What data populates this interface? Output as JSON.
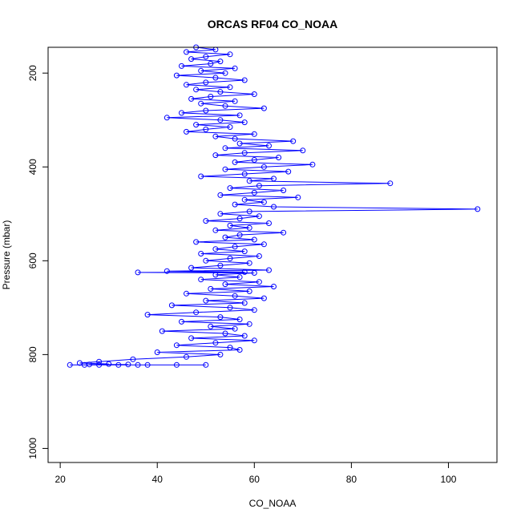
{
  "chart_data": {
    "type": "scatter",
    "title": "ORCAS RF04 CO_NOAA",
    "xlabel": "CO_NOAA",
    "ylabel": "Pressure (mbar)",
    "xlim": [
      17.5,
      110
    ],
    "ylim": [
      1030,
      145
    ],
    "y_reversed": true,
    "x_ticks": [
      "20",
      "40",
      "60",
      "80",
      "100"
    ],
    "y_ticks": [
      "200",
      "400",
      "600",
      "800",
      "1000"
    ],
    "grid": false,
    "legend": "none",
    "marker": "open-circle",
    "connected": true,
    "color": "#0000ff",
    "series": [
      {
        "points": [
          [
            48,
            145
          ],
          [
            52,
            150
          ],
          [
            46,
            155
          ],
          [
            55,
            160
          ],
          [
            50,
            165
          ],
          [
            47,
            170
          ],
          [
            53,
            175
          ],
          [
            51,
            180
          ],
          [
            45,
            185
          ],
          [
            56,
            190
          ],
          [
            49,
            195
          ],
          [
            54,
            200
          ],
          [
            44,
            205
          ],
          [
            52,
            210
          ],
          [
            58,
            215
          ],
          [
            50,
            220
          ],
          [
            46,
            225
          ],
          [
            55,
            230
          ],
          [
            48,
            235
          ],
          [
            53,
            240
          ],
          [
            60,
            245
          ],
          [
            51,
            250
          ],
          [
            47,
            255
          ],
          [
            56,
            260
          ],
          [
            49,
            265
          ],
          [
            54,
            270
          ],
          [
            62,
            275
          ],
          [
            50,
            280
          ],
          [
            45,
            285
          ],
          [
            57,
            290
          ],
          [
            42,
            295
          ],
          [
            53,
            300
          ],
          [
            58,
            305
          ],
          [
            48,
            310
          ],
          [
            55,
            315
          ],
          [
            50,
            320
          ],
          [
            46,
            325
          ],
          [
            60,
            330
          ],
          [
            52,
            335
          ],
          [
            56,
            340
          ],
          [
            68,
            345
          ],
          [
            57,
            350
          ],
          [
            63,
            355
          ],
          [
            54,
            360
          ],
          [
            70,
            365
          ],
          [
            58,
            370
          ],
          [
            52,
            375
          ],
          [
            65,
            380
          ],
          [
            60,
            385
          ],
          [
            56,
            390
          ],
          [
            72,
            395
          ],
          [
            62,
            400
          ],
          [
            54,
            405
          ],
          [
            67,
            410
          ],
          [
            58,
            415
          ],
          [
            49,
            420
          ],
          [
            64,
            425
          ],
          [
            59,
            430
          ],
          [
            88,
            435
          ],
          [
            61,
            440
          ],
          [
            55,
            445
          ],
          [
            66,
            450
          ],
          [
            60,
            455
          ],
          [
            53,
            460
          ],
          [
            69,
            465
          ],
          [
            58,
            470
          ],
          [
            62,
            475
          ],
          [
            56,
            480
          ],
          [
            64,
            485
          ],
          [
            106,
            490
          ],
          [
            59,
            495
          ],
          [
            53,
            500
          ],
          [
            61,
            505
          ],
          [
            57,
            510
          ],
          [
            50,
            515
          ],
          [
            63,
            520
          ],
          [
            55,
            525
          ],
          [
            59,
            530
          ],
          [
            52,
            535
          ],
          [
            66,
            540
          ],
          [
            57,
            545
          ],
          [
            54,
            550
          ],
          [
            60,
            555
          ],
          [
            48,
            560
          ],
          [
            62,
            565
          ],
          [
            56,
            570
          ],
          [
            52,
            575
          ],
          [
            58,
            580
          ],
          [
            49,
            585
          ],
          [
            61,
            590
          ],
          [
            55,
            595
          ],
          [
            50,
            600
          ],
          [
            59,
            605
          ],
          [
            53,
            610
          ],
          [
            47,
            615
          ],
          [
            63,
            620
          ],
          [
            42,
            622
          ],
          [
            58,
            624
          ],
          [
            36,
            625
          ],
          [
            60,
            626
          ],
          [
            52,
            630
          ],
          [
            57,
            635
          ],
          [
            49,
            640
          ],
          [
            61,
            645
          ],
          [
            54,
            650
          ],
          [
            64,
            655
          ],
          [
            51,
            660
          ],
          [
            59,
            665
          ],
          [
            46,
            670
          ],
          [
            56,
            675
          ],
          [
            62,
            680
          ],
          [
            50,
            685
          ],
          [
            58,
            690
          ],
          [
            43,
            695
          ],
          [
            55,
            700
          ],
          [
            60,
            705
          ],
          [
            48,
            710
          ],
          [
            38,
            715
          ],
          [
            53,
            720
          ],
          [
            57,
            725
          ],
          [
            45,
            730
          ],
          [
            59,
            735
          ],
          [
            51,
            740
          ],
          [
            56,
            745
          ],
          [
            41,
            750
          ],
          [
            54,
            755
          ],
          [
            58,
            760
          ],
          [
            47,
            765
          ],
          [
            60,
            770
          ],
          [
            52,
            775
          ],
          [
            44,
            780
          ],
          [
            55,
            785
          ],
          [
            57,
            790
          ],
          [
            40,
            795
          ],
          [
            53,
            800
          ],
          [
            46,
            805
          ],
          [
            35,
            810
          ],
          [
            28,
            815
          ],
          [
            24,
            818
          ],
          [
            30,
            820
          ],
          [
            26,
            821
          ],
          [
            34,
            821
          ],
          [
            22,
            822
          ],
          [
            38,
            822
          ],
          [
            28,
            822
          ],
          [
            32,
            822
          ],
          [
            44,
            822
          ],
          [
            25,
            822
          ],
          [
            50,
            822
          ],
          [
            36,
            822
          ]
        ]
      }
    ]
  }
}
